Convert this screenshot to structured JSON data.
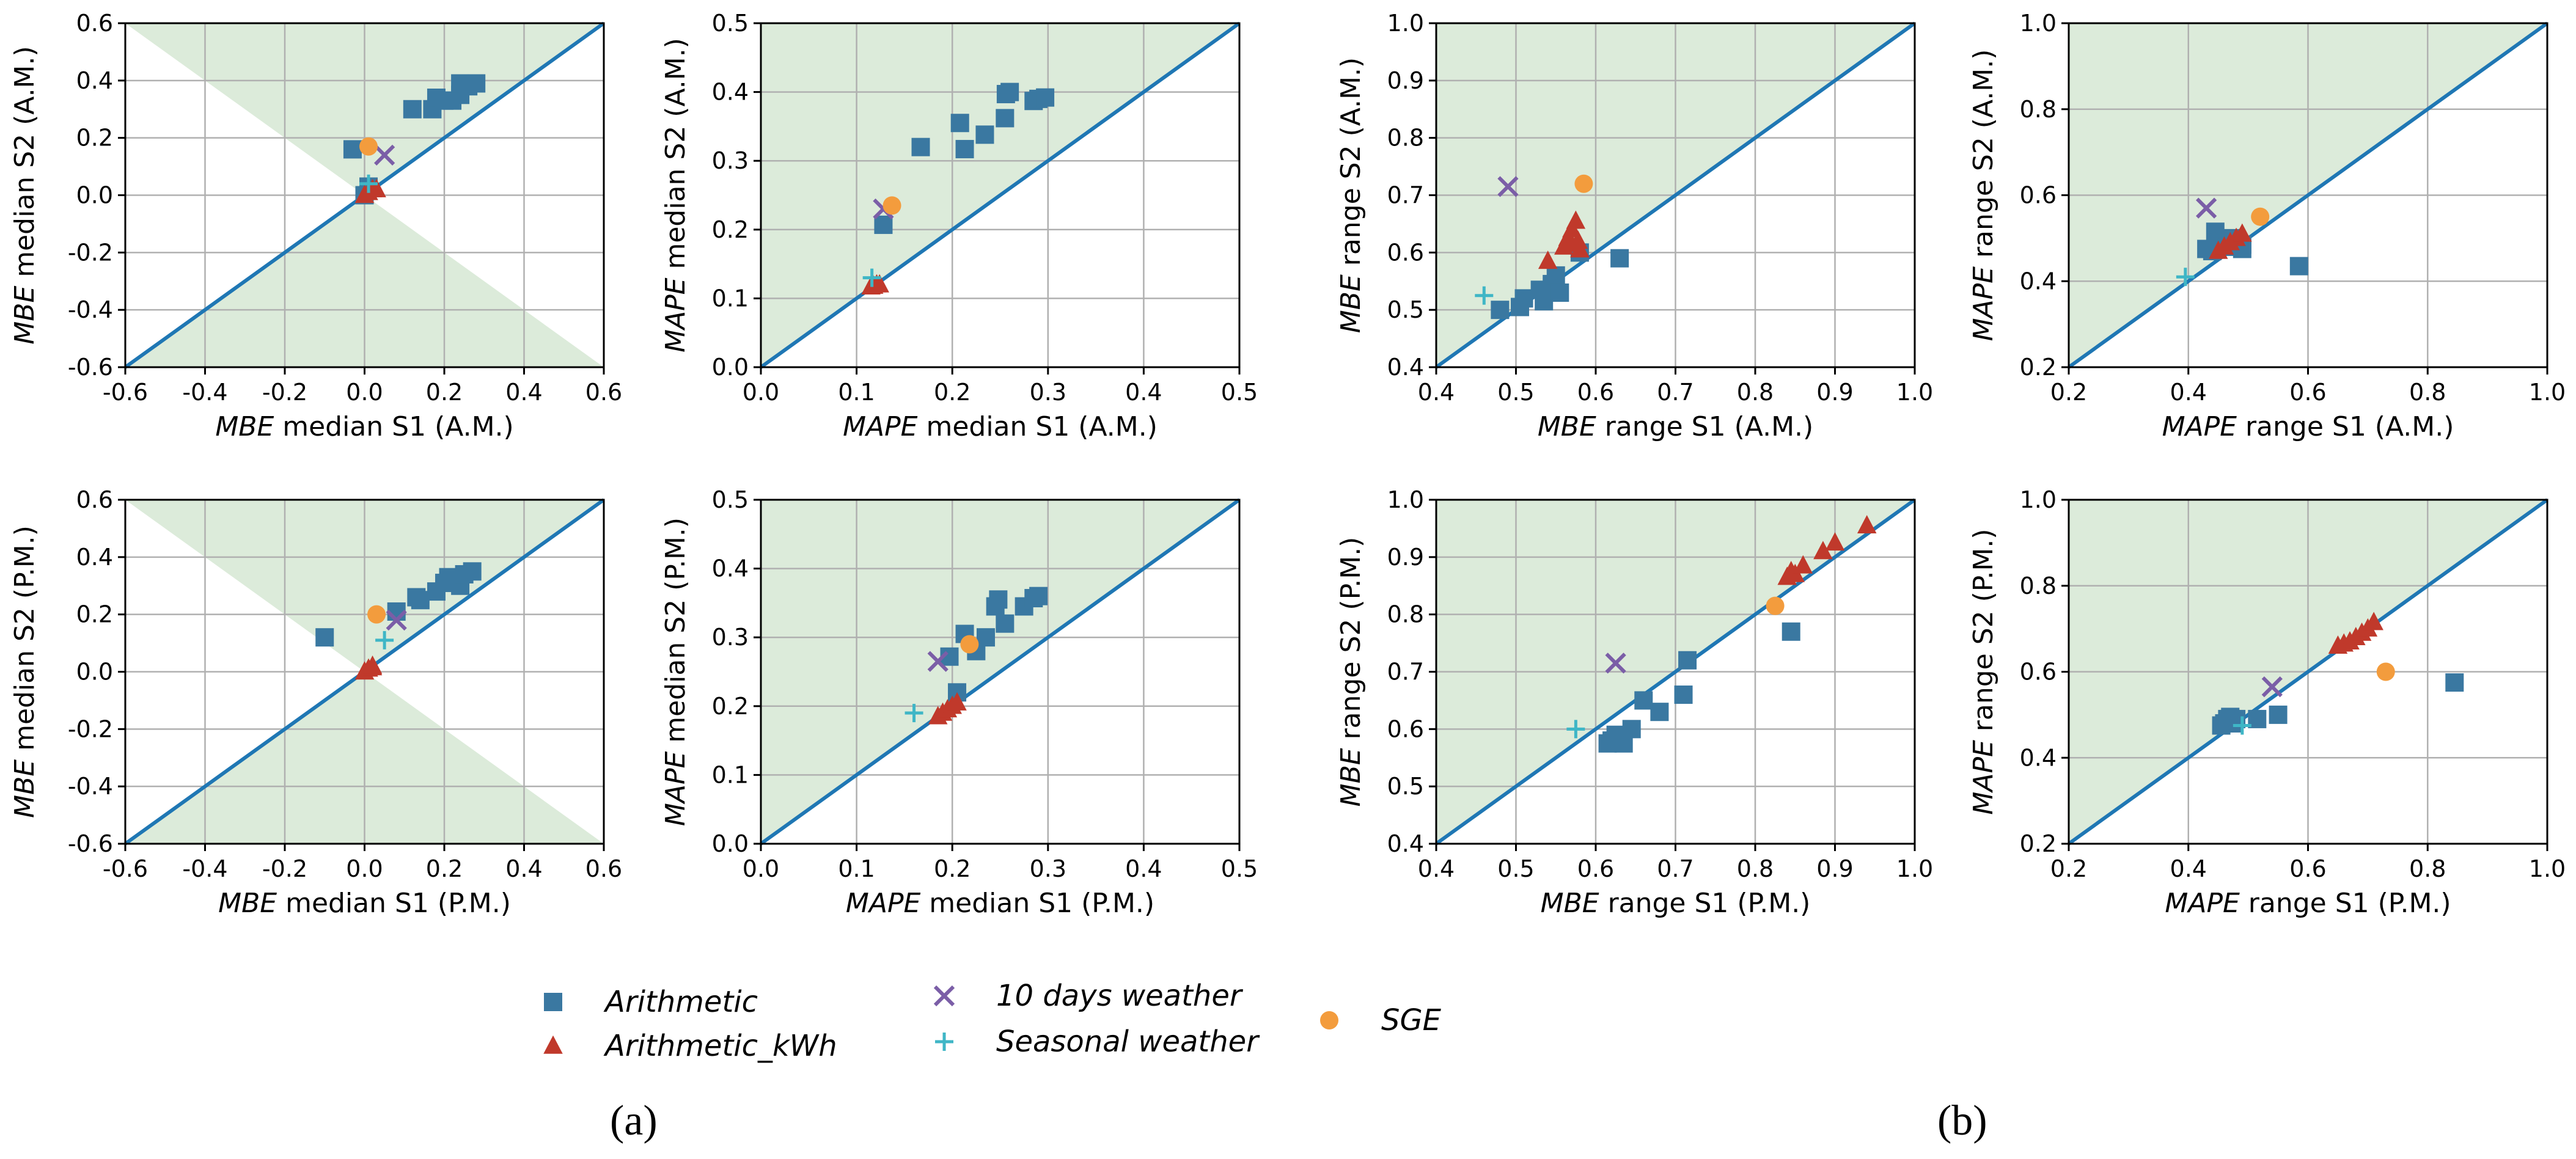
{
  "colors": {
    "arithmetic": "#3a78a1",
    "arithmetic_kwh": "#c0392b",
    "ten_days": "#7b5ea7",
    "seasonal": "#3fb6c6",
    "sge": "#f39c3d",
    "diag_line": "#1f77b4",
    "shade": "#dcebda",
    "grid": "#b0b0b0"
  },
  "legend": {
    "items": [
      {
        "key": "arithmetic",
        "label": "Arithmetic",
        "marker": "square"
      },
      {
        "key": "arithmetic_kwh",
        "label": "Arithmetic_kWh",
        "marker": "triangle"
      },
      {
        "key": "ten_days",
        "label": "10 days weather",
        "marker": "x"
      },
      {
        "key": "seasonal",
        "label": "Seasonal weather",
        "marker": "plus"
      },
      {
        "key": "sge",
        "label": "SGE",
        "marker": "circle"
      }
    ]
  },
  "panel_labels": [
    "(a)",
    "(b)"
  ],
  "chart_data": [
    {
      "id": "mbe-median-am",
      "type": "scatter",
      "shade": "bowtie",
      "xlabel_italic": "MBE",
      "xlabel_rest": " median S1 (A.M.)",
      "ylabel_italic": "MBE",
      "ylabel_rest": " median S2 (A.M.)",
      "xlim": [
        -0.6,
        0.6
      ],
      "ylim": [
        -0.6,
        0.6
      ],
      "xticks": [
        -0.6,
        -0.4,
        -0.2,
        0.0,
        0.2,
        0.4,
        0.6
      ],
      "yticks": [
        -0.6,
        -0.4,
        -0.2,
        0.0,
        0.2,
        0.4,
        0.6
      ],
      "series": [
        {
          "key": "arithmetic",
          "points": [
            [
              -0.03,
              0.16
            ],
            [
              0.0,
              0.0
            ],
            [
              0.01,
              0.03
            ],
            [
              0.12,
              0.3
            ],
            [
              0.17,
              0.3
            ],
            [
              0.18,
              0.34
            ],
            [
              0.2,
              0.33
            ],
            [
              0.22,
              0.33
            ],
            [
              0.24,
              0.35
            ],
            [
              0.24,
              0.39
            ],
            [
              0.26,
              0.38
            ],
            [
              0.28,
              0.39
            ]
          ]
        },
        {
          "key": "arithmetic_kwh",
          "points": [
            [
              0.0,
              0.0
            ],
            [
              0.01,
              0.01
            ],
            [
              0.02,
              0.02
            ],
            [
              0.03,
              0.02
            ]
          ]
        },
        {
          "key": "ten_days",
          "points": [
            [
              0.05,
              0.14
            ]
          ]
        },
        {
          "key": "seasonal",
          "points": [
            [
              0.01,
              0.04
            ]
          ]
        },
        {
          "key": "sge",
          "points": [
            [
              0.01,
              0.17
            ]
          ]
        }
      ]
    },
    {
      "id": "mape-median-am",
      "type": "scatter",
      "shade": "upper",
      "xlabel_italic": "MAPE",
      "xlabel_rest": " median S1 (A.M.)",
      "ylabel_italic": "MAPE",
      "ylabel_rest": " median S2 (A.M.)",
      "xlim": [
        0.0,
        0.5
      ],
      "ylim": [
        0.0,
        0.5
      ],
      "xticks": [
        0.0,
        0.1,
        0.2,
        0.3,
        0.4,
        0.5
      ],
      "yticks": [
        0.0,
        0.1,
        0.2,
        0.3,
        0.4,
        0.5
      ],
      "series": [
        {
          "key": "arithmetic",
          "points": [
            [
              0.128,
              0.207
            ],
            [
              0.167,
              0.32
            ],
            [
              0.208,
              0.355
            ],
            [
              0.213,
              0.317
            ],
            [
              0.234,
              0.338
            ],
            [
              0.255,
              0.362
            ],
            [
              0.256,
              0.397
            ],
            [
              0.26,
              0.4
            ],
            [
              0.285,
              0.387
            ],
            [
              0.29,
              0.39
            ],
            [
              0.297,
              0.392
            ]
          ]
        },
        {
          "key": "arithmetic_kwh",
          "points": [
            [
              0.115,
              0.117
            ],
            [
              0.118,
              0.118
            ],
            [
              0.121,
              0.12
            ],
            [
              0.124,
              0.12
            ]
          ]
        },
        {
          "key": "ten_days",
          "points": [
            [
              0.128,
              0.23
            ]
          ]
        },
        {
          "key": "seasonal",
          "points": [
            [
              0.116,
              0.13
            ]
          ]
        },
        {
          "key": "sge",
          "points": [
            [
              0.137,
              0.235
            ]
          ]
        }
      ]
    },
    {
      "id": "mbe-range-am",
      "type": "scatter",
      "shade": "upper",
      "xlabel_italic": "MBE",
      "xlabel_rest": " range S1 (A.M.)",
      "ylabel_italic": "MBE",
      "ylabel_rest": " range S2 (A.M.)",
      "xlim": [
        0.4,
        1.0
      ],
      "ylim": [
        0.4,
        1.0
      ],
      "xticks": [
        0.4,
        0.5,
        0.6,
        0.7,
        0.8,
        0.9,
        1.0
      ],
      "yticks": [
        0.4,
        0.5,
        0.6,
        0.7,
        0.8,
        0.9,
        1.0
      ],
      "series": [
        {
          "key": "arithmetic",
          "points": [
            [
              0.48,
              0.5
            ],
            [
              0.505,
              0.505
            ],
            [
              0.51,
              0.52
            ],
            [
              0.53,
              0.535
            ],
            [
              0.535,
              0.515
            ],
            [
              0.545,
              0.545
            ],
            [
              0.55,
              0.56
            ],
            [
              0.555,
              0.53
            ],
            [
              0.58,
              0.6
            ],
            [
              0.63,
              0.59
            ]
          ]
        },
        {
          "key": "arithmetic_kwh",
          "points": [
            [
              0.54,
              0.585
            ],
            [
              0.56,
              0.61
            ],
            [
              0.565,
              0.625
            ],
            [
              0.57,
              0.64
            ],
            [
              0.57,
              0.615
            ],
            [
              0.575,
              0.655
            ],
            [
              0.578,
              0.62
            ],
            [
              0.58,
              0.605
            ]
          ]
        },
        {
          "key": "ten_days",
          "points": [
            [
              0.49,
              0.715
            ]
          ]
        },
        {
          "key": "seasonal",
          "points": [
            [
              0.46,
              0.525
            ]
          ]
        },
        {
          "key": "sge",
          "points": [
            [
              0.585,
              0.72
            ]
          ]
        }
      ]
    },
    {
      "id": "mape-range-am",
      "type": "scatter",
      "shade": "upper",
      "xlabel_italic": "MAPE",
      "xlabel_rest": " range S1 (A.M.)",
      "ylabel_italic": "MAPE",
      "ylabel_rest": " range S2 (A.M.)",
      "xlim": [
        0.2,
        1.0
      ],
      "ylim": [
        0.2,
        1.0
      ],
      "xticks": [
        0.2,
        0.4,
        0.6,
        0.8,
        1.0
      ],
      "yticks": [
        0.2,
        0.4,
        0.6,
        0.8,
        1.0
      ],
      "series": [
        {
          "key": "arithmetic",
          "points": [
            [
              0.43,
              0.475
            ],
            [
              0.44,
              0.47
            ],
            [
              0.445,
              0.515
            ],
            [
              0.45,
              0.49
            ],
            [
              0.46,
              0.48
            ],
            [
              0.47,
              0.5
            ],
            [
              0.48,
              0.49
            ],
            [
              0.49,
              0.475
            ],
            [
              0.49,
              0.485
            ],
            [
              0.585,
              0.435
            ]
          ]
        },
        {
          "key": "arithmetic_kwh",
          "points": [
            [
              0.45,
              0.47
            ],
            [
              0.46,
              0.48
            ],
            [
              0.47,
              0.49
            ],
            [
              0.48,
              0.5
            ],
            [
              0.49,
              0.51
            ]
          ]
        },
        {
          "key": "ten_days",
          "points": [
            [
              0.43,
              0.57
            ]
          ]
        },
        {
          "key": "seasonal",
          "points": [
            [
              0.395,
              0.41
            ]
          ]
        },
        {
          "key": "sge",
          "points": [
            [
              0.52,
              0.55
            ]
          ]
        }
      ]
    },
    {
      "id": "mbe-median-pm",
      "type": "scatter",
      "shade": "bowtie",
      "xlabel_italic": "MBE",
      "xlabel_rest": " median S1 (P.M.)",
      "ylabel_italic": "MBE",
      "ylabel_rest": " median S2 (P.M.)",
      "xlim": [
        -0.6,
        0.6
      ],
      "ylim": [
        -0.6,
        0.6
      ],
      "xticks": [
        -0.6,
        -0.4,
        -0.2,
        0.0,
        0.2,
        0.4,
        0.6
      ],
      "yticks": [
        -0.6,
        -0.4,
        -0.2,
        0.0,
        0.2,
        0.4,
        0.6
      ],
      "series": [
        {
          "key": "arithmetic",
          "points": [
            [
              -0.1,
              0.12
            ],
            [
              0.08,
              0.21
            ],
            [
              0.13,
              0.26
            ],
            [
              0.14,
              0.25
            ],
            [
              0.18,
              0.28
            ],
            [
              0.2,
              0.31
            ],
            [
              0.21,
              0.33
            ],
            [
              0.22,
              0.32
            ],
            [
              0.24,
              0.3
            ],
            [
              0.25,
              0.34
            ],
            [
              0.27,
              0.35
            ]
          ]
        },
        {
          "key": "arithmetic_kwh",
          "points": [
            [
              0.0,
              0.0
            ],
            [
              0.01,
              0.01
            ],
            [
              0.02,
              0.015
            ],
            [
              0.02,
              0.02
            ]
          ]
        },
        {
          "key": "ten_days",
          "points": [
            [
              0.08,
              0.18
            ]
          ]
        },
        {
          "key": "seasonal",
          "points": [
            [
              0.05,
              0.11
            ]
          ]
        },
        {
          "key": "sge",
          "points": [
            [
              0.03,
              0.2
            ]
          ]
        }
      ]
    },
    {
      "id": "mape-median-pm",
      "type": "scatter",
      "shade": "upper",
      "xlabel_italic": "MAPE",
      "xlabel_rest": " median S1 (P.M.)",
      "ylabel_italic": "MAPE",
      "ylabel_rest": " median S2 (P.M.)",
      "xlim": [
        0.0,
        0.5
      ],
      "ylim": [
        0.0,
        0.5
      ],
      "xticks": [
        0.0,
        0.1,
        0.2,
        0.3,
        0.4,
        0.5
      ],
      "yticks": [
        0.0,
        0.1,
        0.2,
        0.3,
        0.4,
        0.5
      ],
      "series": [
        {
          "key": "arithmetic",
          "points": [
            [
              0.197,
              0.272
            ],
            [
              0.205,
              0.22
            ],
            [
              0.213,
              0.305
            ],
            [
              0.225,
              0.28
            ],
            [
              0.235,
              0.3
            ],
            [
              0.245,
              0.345
            ],
            [
              0.248,
              0.355
            ],
            [
              0.255,
              0.32
            ],
            [
              0.275,
              0.345
            ],
            [
              0.285,
              0.357
            ],
            [
              0.29,
              0.36
            ]
          ]
        },
        {
          "key": "arithmetic_kwh",
          "points": [
            [
              0.185,
              0.185
            ],
            [
              0.19,
              0.19
            ],
            [
              0.195,
              0.195
            ],
            [
              0.2,
              0.2
            ],
            [
              0.205,
              0.205
            ]
          ]
        },
        {
          "key": "ten_days",
          "points": [
            [
              0.185,
              0.265
            ]
          ]
        },
        {
          "key": "seasonal",
          "points": [
            [
              0.16,
              0.19
            ]
          ]
        },
        {
          "key": "sge",
          "points": [
            [
              0.218,
              0.29
            ]
          ]
        }
      ]
    },
    {
      "id": "mbe-range-pm",
      "type": "scatter",
      "shade": "upper",
      "xlabel_italic": "MBE",
      "xlabel_rest": " range S1 (P.M.)",
      "ylabel_italic": "MBE",
      "ylabel_rest": " range S2 (P.M.)",
      "xlim": [
        0.4,
        1.0
      ],
      "ylim": [
        0.4,
        1.0
      ],
      "xticks": [
        0.4,
        0.5,
        0.6,
        0.7,
        0.8,
        0.9,
        1.0
      ],
      "yticks": [
        0.4,
        0.5,
        0.6,
        0.7,
        0.8,
        0.9,
        1.0
      ],
      "series": [
        {
          "key": "arithmetic",
          "points": [
            [
              0.615,
              0.575
            ],
            [
              0.62,
              0.58
            ],
            [
              0.625,
              0.59
            ],
            [
              0.635,
              0.575
            ],
            [
              0.645,
              0.6
            ],
            [
              0.66,
              0.65
            ],
            [
              0.68,
              0.63
            ],
            [
              0.71,
              0.66
            ],
            [
              0.715,
              0.72
            ],
            [
              0.845,
              0.77
            ]
          ]
        },
        {
          "key": "arithmetic_kwh",
          "points": [
            [
              0.84,
              0.865
            ],
            [
              0.845,
              0.875
            ],
            [
              0.85,
              0.87
            ],
            [
              0.86,
              0.885
            ],
            [
              0.885,
              0.91
            ],
            [
              0.9,
              0.925
            ],
            [
              0.94,
              0.955
            ]
          ]
        },
        {
          "key": "ten_days",
          "points": [
            [
              0.625,
              0.715
            ]
          ]
        },
        {
          "key": "seasonal",
          "points": [
            [
              0.575,
              0.6
            ]
          ]
        },
        {
          "key": "sge",
          "points": [
            [
              0.825,
              0.815
            ]
          ]
        }
      ]
    },
    {
      "id": "mape-range-pm",
      "type": "scatter",
      "shade": "upper",
      "xlabel_italic": "MAPE",
      "xlabel_rest": " range S1 (P.M.)",
      "ylabel_italic": "MAPE",
      "ylabel_rest": " range S2 (P.M.)",
      "xlim": [
        0.2,
        1.0
      ],
      "ylim": [
        0.2,
        1.0
      ],
      "xticks": [
        0.2,
        0.4,
        0.6,
        0.8,
        1.0
      ],
      "yticks": [
        0.2,
        0.4,
        0.6,
        0.8,
        1.0
      ],
      "series": [
        {
          "key": "arithmetic",
          "points": [
            [
              0.455,
              0.475
            ],
            [
              0.46,
              0.48
            ],
            [
              0.465,
              0.49
            ],
            [
              0.47,
              0.495
            ],
            [
              0.475,
              0.48
            ],
            [
              0.48,
              0.49
            ],
            [
              0.515,
              0.49
            ],
            [
              0.55,
              0.5
            ],
            [
              0.845,
              0.575
            ]
          ]
        },
        {
          "key": "arithmetic_kwh",
          "points": [
            [
              0.65,
              0.66
            ],
            [
              0.66,
              0.665
            ],
            [
              0.67,
              0.67
            ],
            [
              0.68,
              0.68
            ],
            [
              0.69,
              0.69
            ],
            [
              0.7,
              0.7
            ],
            [
              0.71,
              0.715
            ]
          ]
        },
        {
          "key": "ten_days",
          "points": [
            [
              0.54,
              0.565
            ]
          ]
        },
        {
          "key": "seasonal",
          "points": [
            [
              0.49,
              0.475
            ]
          ]
        },
        {
          "key": "sge",
          "points": [
            [
              0.73,
              0.6
            ]
          ]
        }
      ]
    }
  ]
}
